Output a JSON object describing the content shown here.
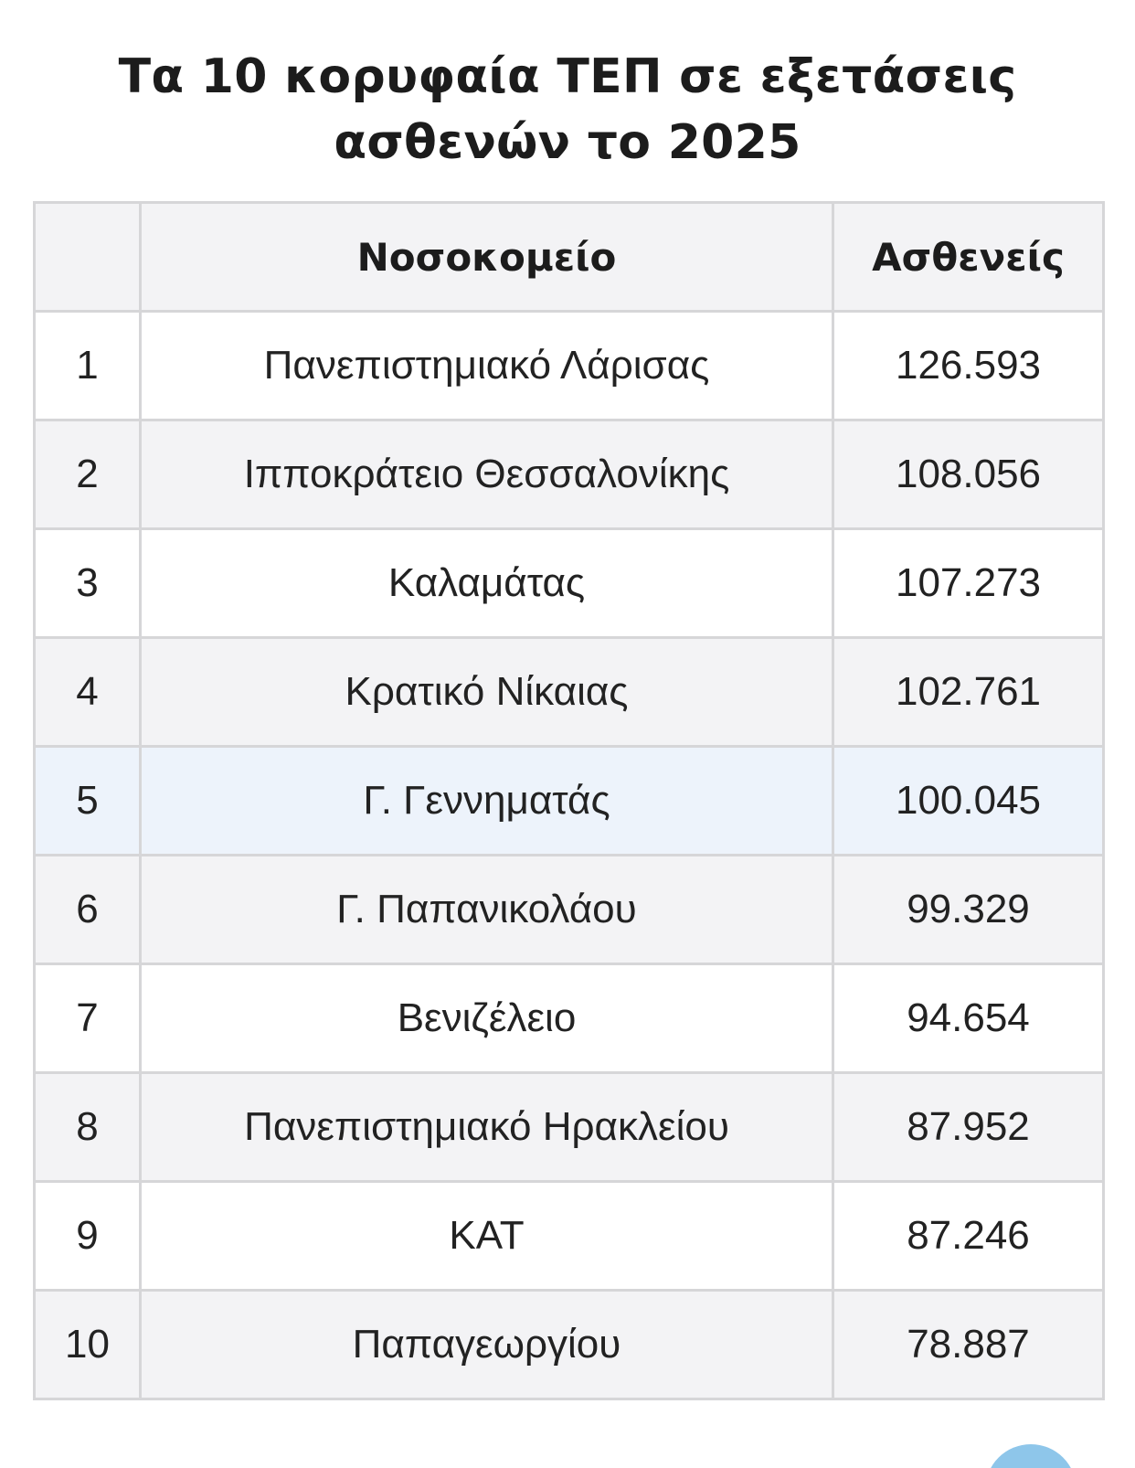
{
  "title": "Τα 10 κορυφαία ΤΕΠ σε εξετάσεις ασθενών το 2025",
  "table": {
    "headers": {
      "rank": "",
      "hospital": "Νοσοκομείο",
      "patients": "Ασθενείς"
    },
    "rows": [
      {
        "rank": "1",
        "hospital": "Πανεπιστημιακό Λάρισας",
        "patients": "126.593"
      },
      {
        "rank": "2",
        "hospital": "Ιπποκράτειο Θεσσαλονίκης",
        "patients": "108.056"
      },
      {
        "rank": "3",
        "hospital": "Καλαμάτας",
        "patients": "107.273"
      },
      {
        "rank": "4",
        "hospital": "Κρατικό Νίκαιας",
        "patients": "102.761"
      },
      {
        "rank": "5",
        "hospital": "Γ. Γεννηματάς",
        "patients": "100.045"
      },
      {
        "rank": "6",
        "hospital": "Γ. Παπανικολάου",
        "patients": "99.329"
      },
      {
        "rank": "7",
        "hospital": "Βενιζέλειο",
        "patients": "94.654"
      },
      {
        "rank": "8",
        "hospital": "Πανεπιστημιακό Ηρακλείου",
        "patients": "87.952"
      },
      {
        "rank": "9",
        "hospital": "ΚΑΤ",
        "patients": "87.246"
      },
      {
        "rank": "10",
        "hospital": "Παπαγεωργίου",
        "patients": "78.887"
      }
    ]
  },
  "colors": {
    "header_bg": "#f3f3f5",
    "stripe_bg": "#f3f3f5",
    "highlight_bg": "#edf3fb",
    "border": "#d6d6d8",
    "fab": "#8ec6ea"
  },
  "highlighted_row": "5"
}
